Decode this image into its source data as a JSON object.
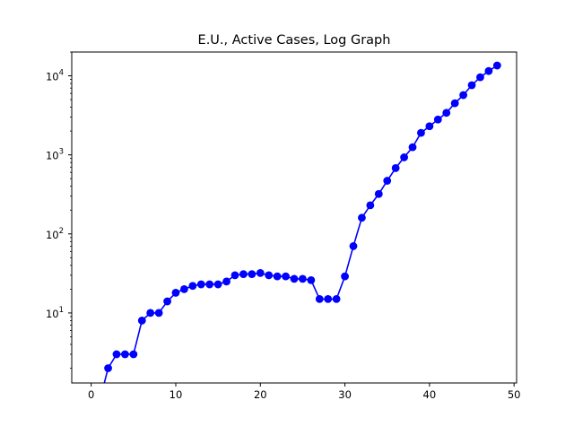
{
  "chart_data": {
    "type": "line",
    "title": "E.U., Active Cases, Log Graph",
    "xlabel": "",
    "ylabel": "",
    "yscale": "log",
    "xlim": [
      -2.3,
      50.3
    ],
    "ylim": [
      1.3,
      20000
    ],
    "grid": false,
    "x_ticks": [
      0,
      10,
      20,
      30,
      40,
      50
    ],
    "y_ticks": [
      {
        "value": 10,
        "base": "10",
        "exp": "1"
      },
      {
        "value": 100,
        "base": "10",
        "exp": "2"
      },
      {
        "value": 1000,
        "base": "10",
        "exp": "3"
      },
      {
        "value": 10000,
        "base": "10",
        "exp": "4"
      }
    ],
    "series": [
      {
        "color": "#0000ff",
        "marker": "circle",
        "x": [
          0,
          1,
          2,
          3,
          4,
          5,
          6,
          7,
          8,
          9,
          10,
          11,
          12,
          13,
          14,
          15,
          16,
          17,
          18,
          19,
          20,
          21,
          22,
          23,
          24,
          25,
          26,
          27,
          28,
          29,
          30,
          31,
          32,
          33,
          34,
          35,
          36,
          37,
          38,
          39,
          40,
          41,
          42,
          43,
          44,
          45,
          46,
          47,
          48
        ],
        "y": [
          0,
          0,
          2,
          3,
          3,
          3,
          8,
          10,
          10,
          14,
          18,
          20,
          22,
          23,
          23,
          23,
          25,
          30,
          31,
          31,
          32,
          30,
          29,
          29,
          27,
          27,
          26,
          15,
          15,
          15,
          29,
          70,
          160,
          230,
          320,
          470,
          680,
          930,
          1250,
          1900,
          2300,
          2800,
          3400,
          4500,
          5700,
          7600,
          9600,
          11500,
          13500
        ]
      }
    ]
  }
}
